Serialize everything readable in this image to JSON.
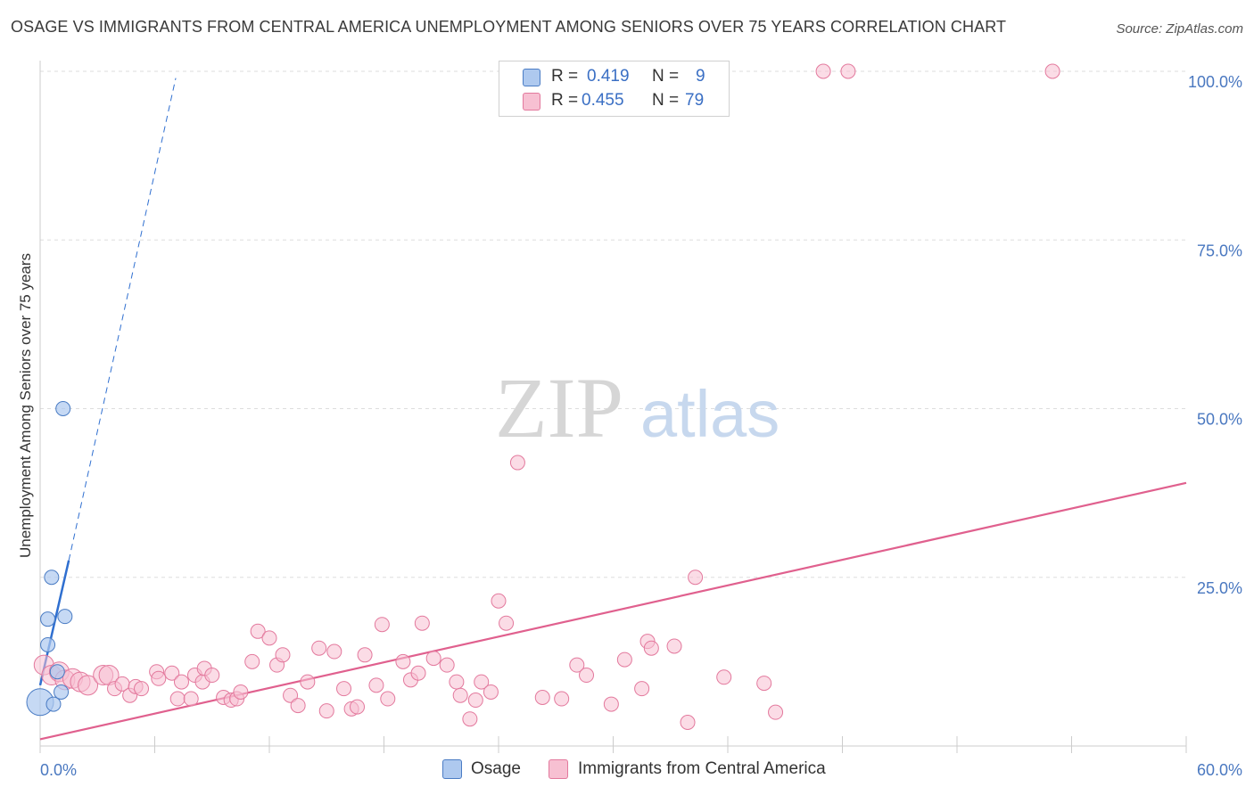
{
  "header": {
    "title": "OSAGE VS IMMIGRANTS FROM CENTRAL AMERICA UNEMPLOYMENT AMONG SENIORS OVER 75 YEARS CORRELATION CHART",
    "source": "Source: ZipAtlas.com"
  },
  "watermark": {
    "zip": "ZIP",
    "atlas": "atlas"
  },
  "legend": {
    "r_label": "R =",
    "n_label": "N =",
    "osage": {
      "r": "0.419",
      "n": "9"
    },
    "immigrants": {
      "r": "0.455",
      "n": "79"
    }
  },
  "colors": {
    "osage_fill": "#aec9ef",
    "osage_stroke": "#4a7cc4",
    "osage_line": "#2f6fd0",
    "imm_fill": "#f7c0d2",
    "imm_stroke": "#e3799d",
    "imm_line": "#e0608e",
    "axis_text": "#4a78c0",
    "grid": "#dddddd"
  },
  "chart_data": {
    "type": "scatter",
    "title": "OSAGE VS IMMIGRANTS FROM CENTRAL AMERICA UNEMPLOYMENT AMONG SENIORS OVER 75 YEARS CORRELATION CHART",
    "xlabel": "",
    "ylabel": "Unemployment Among Seniors over 75 years",
    "xlim": [
      0,
      60
    ],
    "ylim": [
      0,
      100
    ],
    "x_tick_labels": [
      "0.0%",
      "60.0%"
    ],
    "y_ticks": [
      25,
      50,
      75,
      100
    ],
    "y_tick_labels": [
      "25.0%",
      "50.0%",
      "75.0%",
      "100.0%"
    ],
    "grid": true,
    "series": [
      {
        "name": "Osage",
        "points": [
          [
            0.0,
            6.5
          ],
          [
            0.4,
            15.0
          ],
          [
            0.4,
            18.8
          ],
          [
            0.6,
            25.0
          ],
          [
            0.7,
            6.2
          ],
          [
            0.9,
            11.0
          ],
          [
            1.1,
            8.0
          ],
          [
            1.2,
            50.0
          ],
          [
            1.3,
            19.2
          ]
        ],
        "trend": {
          "x1": 0.0,
          "y1": 9.0,
          "x2": 1.5,
          "y2": 27.5
        },
        "trend_dashed": {
          "x1": 1.5,
          "y1": 27.5,
          "x2": 7.1,
          "y2": 99.0
        }
      },
      {
        "name": "Immigrants from Central America",
        "points": [
          [
            0.2,
            12.0
          ],
          [
            0.6,
            10.5
          ],
          [
            1.0,
            11.0
          ],
          [
            1.3,
            9.8
          ],
          [
            1.7,
            10.0
          ],
          [
            2.1,
            9.5
          ],
          [
            2.5,
            9.0
          ],
          [
            3.3,
            10.5
          ],
          [
            3.6,
            10.5
          ],
          [
            3.9,
            8.5
          ],
          [
            4.3,
            9.2
          ],
          [
            4.7,
            7.5
          ],
          [
            5.0,
            8.8
          ],
          [
            5.3,
            8.5
          ],
          [
            6.1,
            11.0
          ],
          [
            6.2,
            10.0
          ],
          [
            6.9,
            10.8
          ],
          [
            7.2,
            7.0
          ],
          [
            7.4,
            9.5
          ],
          [
            7.9,
            7.0
          ],
          [
            8.1,
            10.5
          ],
          [
            8.5,
            9.5
          ],
          [
            8.6,
            11.5
          ],
          [
            9.0,
            10.5
          ],
          [
            9.6,
            7.2
          ],
          [
            10.0,
            6.8
          ],
          [
            10.3,
            7.0
          ],
          [
            10.5,
            8.0
          ],
          [
            11.1,
            12.5
          ],
          [
            11.4,
            17.0
          ],
          [
            12.0,
            16.0
          ],
          [
            12.4,
            12.0
          ],
          [
            12.7,
            13.5
          ],
          [
            13.1,
            7.5
          ],
          [
            13.5,
            6.0
          ],
          [
            14.0,
            9.5
          ],
          [
            14.6,
            14.5
          ],
          [
            15.0,
            5.2
          ],
          [
            15.4,
            14.0
          ],
          [
            15.9,
            8.5
          ],
          [
            16.3,
            5.5
          ],
          [
            16.6,
            5.8
          ],
          [
            17.0,
            13.5
          ],
          [
            17.6,
            9.0
          ],
          [
            17.9,
            18.0
          ],
          [
            18.2,
            7.0
          ],
          [
            19.0,
            12.5
          ],
          [
            19.4,
            9.8
          ],
          [
            19.8,
            10.8
          ],
          [
            20.0,
            18.2
          ],
          [
            20.6,
            13.0
          ],
          [
            21.3,
            12.0
          ],
          [
            21.8,
            9.5
          ],
          [
            22.0,
            7.5
          ],
          [
            22.5,
            4.0
          ],
          [
            22.8,
            6.8
          ],
          [
            23.1,
            9.5
          ],
          [
            23.6,
            8.0
          ],
          [
            24.0,
            21.5
          ],
          [
            24.4,
            18.2
          ],
          [
            25.0,
            42.0
          ],
          [
            26.3,
            7.2
          ],
          [
            27.3,
            7.0
          ],
          [
            28.1,
            12.0
          ],
          [
            28.6,
            10.5
          ],
          [
            29.9,
            6.2
          ],
          [
            30.6,
            12.8
          ],
          [
            31.5,
            8.5
          ],
          [
            31.8,
            15.5
          ],
          [
            32.0,
            14.5
          ],
          [
            33.2,
            14.8
          ],
          [
            33.9,
            3.5
          ],
          [
            34.3,
            25.0
          ],
          [
            35.8,
            10.2
          ],
          [
            37.9,
            9.3
          ],
          [
            38.5,
            5.0
          ],
          [
            41.0,
            100.0
          ],
          [
            42.3,
            100.0
          ],
          [
            53.0,
            100.0
          ]
        ],
        "trend": {
          "x1": 0.0,
          "y1": 1.0,
          "x2": 60.0,
          "y2": 39.0
        }
      }
    ]
  },
  "bottom_legend": {
    "osage": "Osage",
    "immigrants": "Immigrants from Central America"
  }
}
